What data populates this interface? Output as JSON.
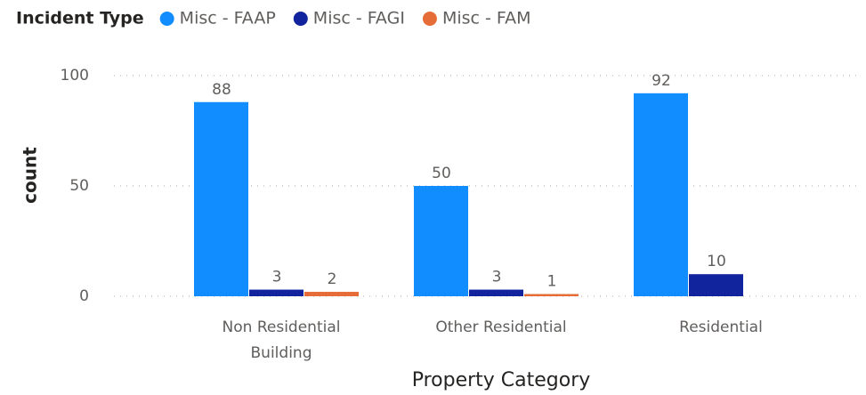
{
  "chart_data": {
    "type": "bar",
    "legend_title": "Incident Type",
    "x_label": "Property Category",
    "y_label": "count",
    "categories": [
      "Non Residential Building",
      "Other Residential",
      "Residential"
    ],
    "series": [
      {
        "name": "Misc - FAAP",
        "color": "#118DFF",
        "values": [
          88,
          50,
          92
        ]
      },
      {
        "name": "Misc - FAGI",
        "color": "#12239E",
        "values": [
          3,
          3,
          10
        ]
      },
      {
        "name": "Misc - FAM",
        "color": "#E66C37",
        "values": [
          2,
          1,
          null
        ]
      }
    ],
    "ylim": [
      0,
      100
    ],
    "yticks": [
      0,
      50,
      100
    ],
    "grid": true,
    "legend": "top-left"
  }
}
